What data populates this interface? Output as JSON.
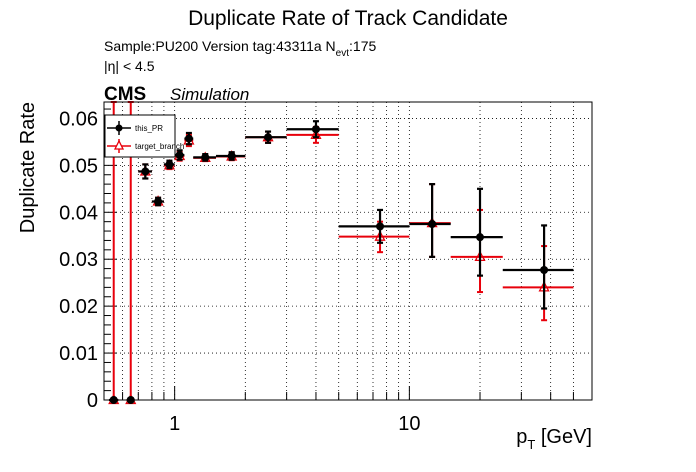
{
  "chart_data": {
    "type": "scatter",
    "title": "Duplicate Rate of Track Candidate",
    "info": {
      "line1_prefix": "Sample:PU200   Version tag:43311a  N",
      "line1_sub": "evt",
      "line1_suffix": ":175",
      "eta_cut": "|η| < 4.5"
    },
    "cms_label": "CMS",
    "simulation_label": "Simulation",
    "xlabel": {
      "main": "p",
      "sub": "T",
      "unit": " [GeV]"
    },
    "ylabel": "Duplicate Rate",
    "x_scale": "log",
    "xlim": [
      0.5,
      60
    ],
    "ylim": [
      0,
      0.0635
    ],
    "x_ticks": [
      {
        "value": 1,
        "label": "1"
      },
      {
        "value": 10,
        "label": "10"
      }
    ],
    "y_ticks": [
      {
        "value": 0,
        "label": "0"
      },
      {
        "value": 0.01,
        "label": "0.01"
      },
      {
        "value": 0.02,
        "label": "0.02"
      },
      {
        "value": 0.03,
        "label": "0.03"
      },
      {
        "value": 0.04,
        "label": "0.04"
      },
      {
        "value": 0.05,
        "label": "0.05"
      },
      {
        "value": 0.06,
        "label": "0.06"
      }
    ],
    "grid": true,
    "legend_position": "top-left",
    "series": [
      {
        "name": "this_PR",
        "color": "#000000",
        "marker": "circle",
        "points": [
          {
            "x": 0.55,
            "xlo": 0.525,
            "xhi": 0.575,
            "y": 0.0,
            "ylo": 0.0,
            "yhi": 0.0
          },
          {
            "x": 0.65,
            "xlo": 0.625,
            "xhi": 0.675,
            "y": 0.0,
            "ylo": 0.0,
            "yhi": 0.0
          },
          {
            "x": 0.75,
            "xlo": 0.7,
            "xhi": 0.8,
            "y": 0.0487,
            "ylo": 0.0472,
            "yhi": 0.0502
          },
          {
            "x": 0.85,
            "xlo": 0.8,
            "xhi": 0.9,
            "y": 0.0423,
            "ylo": 0.0415,
            "yhi": 0.0431
          },
          {
            "x": 0.95,
            "xlo": 0.9,
            "xhi": 1.0,
            "y": 0.0502,
            "ylo": 0.0494,
            "yhi": 0.051
          },
          {
            "x": 1.05,
            "xlo": 1.0,
            "xhi": 1.1,
            "y": 0.0522,
            "ylo": 0.0512,
            "yhi": 0.0532
          },
          {
            "x": 1.15,
            "xlo": 1.1,
            "xhi": 1.2,
            "y": 0.0557,
            "ylo": 0.0545,
            "yhi": 0.0569
          },
          {
            "x": 1.35,
            "xlo": 1.2,
            "xhi": 1.5,
            "y": 0.0517,
            "ylo": 0.051,
            "yhi": 0.0524
          },
          {
            "x": 1.75,
            "xlo": 1.5,
            "xhi": 2.0,
            "y": 0.052,
            "ylo": 0.0512,
            "yhi": 0.0528
          },
          {
            "x": 2.5,
            "xlo": 2.0,
            "xhi": 3.0,
            "y": 0.056,
            "ylo": 0.0548,
            "yhi": 0.0572
          },
          {
            "x": 4.0,
            "xlo": 3.0,
            "xhi": 5.0,
            "y": 0.0577,
            "ylo": 0.056,
            "yhi": 0.0594
          },
          {
            "x": 7.5,
            "xlo": 5.0,
            "xhi": 10.0,
            "y": 0.037,
            "ylo": 0.0335,
            "yhi": 0.0405
          },
          {
            "x": 12.5,
            "xlo": 10.0,
            "xhi": 15.0,
            "y": 0.0375,
            "ylo": 0.0305,
            "yhi": 0.046
          },
          {
            "x": 20.0,
            "xlo": 15.0,
            "xhi": 25.0,
            "y": 0.0347,
            "ylo": 0.0265,
            "yhi": 0.045
          },
          {
            "x": 37.5,
            "xlo": 25.0,
            "xhi": 50.0,
            "y": 0.0277,
            "ylo": 0.0195,
            "yhi": 0.0372
          }
        ]
      },
      {
        "name": "target_branch",
        "color": "#e8000b",
        "marker": "triangle",
        "points": [
          {
            "x": 0.55,
            "xlo": 0.525,
            "xhi": 0.575,
            "y": 0.0,
            "ylo": 0.0,
            "yhi": 0.0635
          },
          {
            "x": 0.65,
            "xlo": 0.625,
            "xhi": 0.675,
            "y": 0.0,
            "ylo": 0.0,
            "yhi": 0.0635
          },
          {
            "x": 0.75,
            "xlo": 0.7,
            "xhi": 0.8,
            "y": 0.0487,
            "ylo": 0.0472,
            "yhi": 0.0502
          },
          {
            "x": 0.85,
            "xlo": 0.8,
            "xhi": 0.9,
            "y": 0.0423,
            "ylo": 0.0415,
            "yhi": 0.0431
          },
          {
            "x": 0.95,
            "xlo": 0.9,
            "xhi": 1.0,
            "y": 0.05,
            "ylo": 0.0492,
            "yhi": 0.0508
          },
          {
            "x": 1.05,
            "xlo": 1.0,
            "xhi": 1.1,
            "y": 0.052,
            "ylo": 0.051,
            "yhi": 0.053
          },
          {
            "x": 1.15,
            "xlo": 1.1,
            "xhi": 1.2,
            "y": 0.0553,
            "ylo": 0.0541,
            "yhi": 0.0565
          },
          {
            "x": 1.35,
            "xlo": 1.2,
            "xhi": 1.5,
            "y": 0.0516,
            "ylo": 0.0509,
            "yhi": 0.0523
          },
          {
            "x": 1.75,
            "xlo": 1.5,
            "xhi": 2.0,
            "y": 0.0519,
            "ylo": 0.0511,
            "yhi": 0.0527
          },
          {
            "x": 2.5,
            "xlo": 2.0,
            "xhi": 3.0,
            "y": 0.056,
            "ylo": 0.0548,
            "yhi": 0.0572
          },
          {
            "x": 4.0,
            "xlo": 3.0,
            "xhi": 5.0,
            "y": 0.0565,
            "ylo": 0.0548,
            "yhi": 0.0582
          },
          {
            "x": 7.5,
            "xlo": 5.0,
            "xhi": 10.0,
            "y": 0.0348,
            "ylo": 0.0315,
            "yhi": 0.038
          },
          {
            "x": 12.5,
            "xlo": 10.0,
            "xhi": 15.0,
            "y": 0.0377,
            "ylo": 0.0305,
            "yhi": 0.046
          },
          {
            "x": 20.0,
            "xlo": 15.0,
            "xhi": 25.0,
            "y": 0.0305,
            "ylo": 0.023,
            "yhi": 0.0405
          },
          {
            "x": 37.5,
            "xlo": 25.0,
            "xhi": 50.0,
            "y": 0.024,
            "ylo": 0.017,
            "yhi": 0.0328
          }
        ]
      }
    ]
  }
}
